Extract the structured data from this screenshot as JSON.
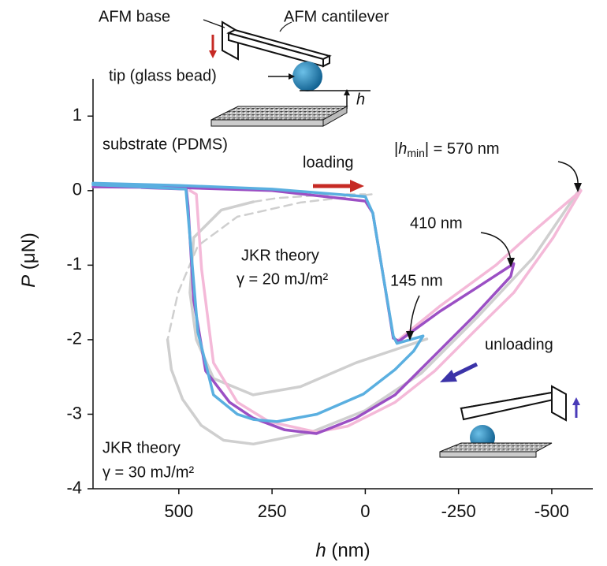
{
  "chart_data": {
    "type": "line",
    "x_label": {
      "symbol": "h",
      "unit": "(nm)"
    },
    "y_label": {
      "symbol": "P",
      "unit": "(μN)"
    },
    "xlim": [
      730,
      -610
    ],
    "ylim": [
      -4,
      1.5
    ],
    "xticks": [
      500,
      250,
      0,
      -250,
      -500
    ],
    "yticks": [
      1,
      0,
      -1,
      -2,
      -3,
      -4
    ],
    "grid": false,
    "series": [
      {
        "color": "#cfcfcf",
        "dashed": false,
        "x": [
          -575,
          -450,
          -300,
          -150,
          0,
          150,
          300,
          380,
          440,
          490,
          520,
          530
        ],
        "values": [
          0.02,
          -0.9,
          -1.7,
          -2.45,
          -2.95,
          -3.25,
          -3.4,
          -3.35,
          -3.15,
          -2.8,
          -2.4,
          -2.0
        ]
      },
      {
        "color": "#cfcfcf",
        "dashed": true,
        "x": [
          -17,
          174,
          343,
          449,
          502,
          530
        ],
        "values": [
          -0.05,
          -0.16,
          -0.35,
          -0.74,
          -1.37,
          -2.0
        ]
      },
      {
        "color": "#cfcfcf",
        "dashed": false,
        "x": [
          -165,
          25,
          174,
          301,
          407,
          453,
          470,
          460,
          386,
          300
        ],
        "values": [
          -1.99,
          -2.31,
          -2.63,
          -2.74,
          -2.52,
          -2.0,
          -1.37,
          -0.63,
          -0.26,
          -0.15
        ]
      },
      {
        "color": "#cfcfcf",
        "dashed": true,
        "x": [
          300,
          237,
          89,
          0
        ],
        "values": [
          -0.15,
          -0.1,
          -0.05,
          -0.05
        ]
      },
      {
        "color": "#f4b9d8",
        "dashed": false,
        "x": [
          -90,
          -200,
          -350,
          -450,
          -578,
          -504,
          -398,
          -292,
          -186,
          -80,
          47,
          131,
          258,
          343,
          407,
          439,
          453,
          470
        ],
        "values": [
          -2.0,
          -1.55,
          -1.0,
          -0.55,
          0.0,
          -0.63,
          -1.37,
          -1.89,
          -2.42,
          -2.84,
          -3.16,
          -3.24,
          -3.1,
          -2.84,
          -2.31,
          -1.05,
          -0.05,
          0.0
        ]
      },
      {
        "color": "#9b4fc4",
        "dashed": false,
        "x": [
          730,
          500,
          250,
          0,
          -20,
          -50,
          -75,
          -90,
          -200,
          -300,
          -398,
          -390,
          -292,
          -186,
          -80,
          25,
          131,
          216,
          301,
          364,
          428,
          460,
          475,
          480,
          600
        ],
        "values": [
          0.05,
          0.04,
          0.0,
          -0.14,
          -0.3,
          -1.2,
          -1.98,
          -2.02,
          -1.62,
          -1.3,
          -0.98,
          -1.15,
          -1.68,
          -2.21,
          -2.74,
          -3.05,
          -3.26,
          -3.21,
          -3.05,
          -2.84,
          -2.42,
          -1.47,
          -0.21,
          0.02,
          0.04
        ]
      },
      {
        "color": "#5aafe0",
        "dashed": false,
        "x": [
          730,
          500,
          250,
          0,
          -20,
          -50,
          -75,
          -85,
          -120,
          -155,
          -130,
          -80,
          5,
          130,
          237,
          300,
          343,
          407,
          449,
          470,
          481,
          600,
          730
        ],
        "values": [
          0.1,
          0.07,
          0.02,
          -0.08,
          -0.3,
          -1.2,
          -1.95,
          -2.05,
          -2.0,
          -1.95,
          -2.15,
          -2.4,
          -2.73,
          -3.0,
          -3.1,
          -3.07,
          -3.0,
          -2.74,
          -1.9,
          -0.63,
          0.02,
          0.05,
          0.08
        ]
      }
    ],
    "annotations": {
      "loading": "loading",
      "unloading": "unloading",
      "hmin": [
        "|",
        "h",
        "min",
        "| = 570 nm"
      ],
      "h410": "410 nm",
      "h145": "145 nm",
      "jkr20": [
        "JKR theory",
        "γ = 20 mJ/m²"
      ],
      "jkr30": [
        "JKR theory",
        "γ = 30 mJ/m²"
      ]
    },
    "inset": {
      "afm_base": "AFM base",
      "cantilever": "AFM cantilever",
      "tip": "tip (glass bead)",
      "h": "h",
      "substrate": "substrate (PDMS)"
    }
  }
}
